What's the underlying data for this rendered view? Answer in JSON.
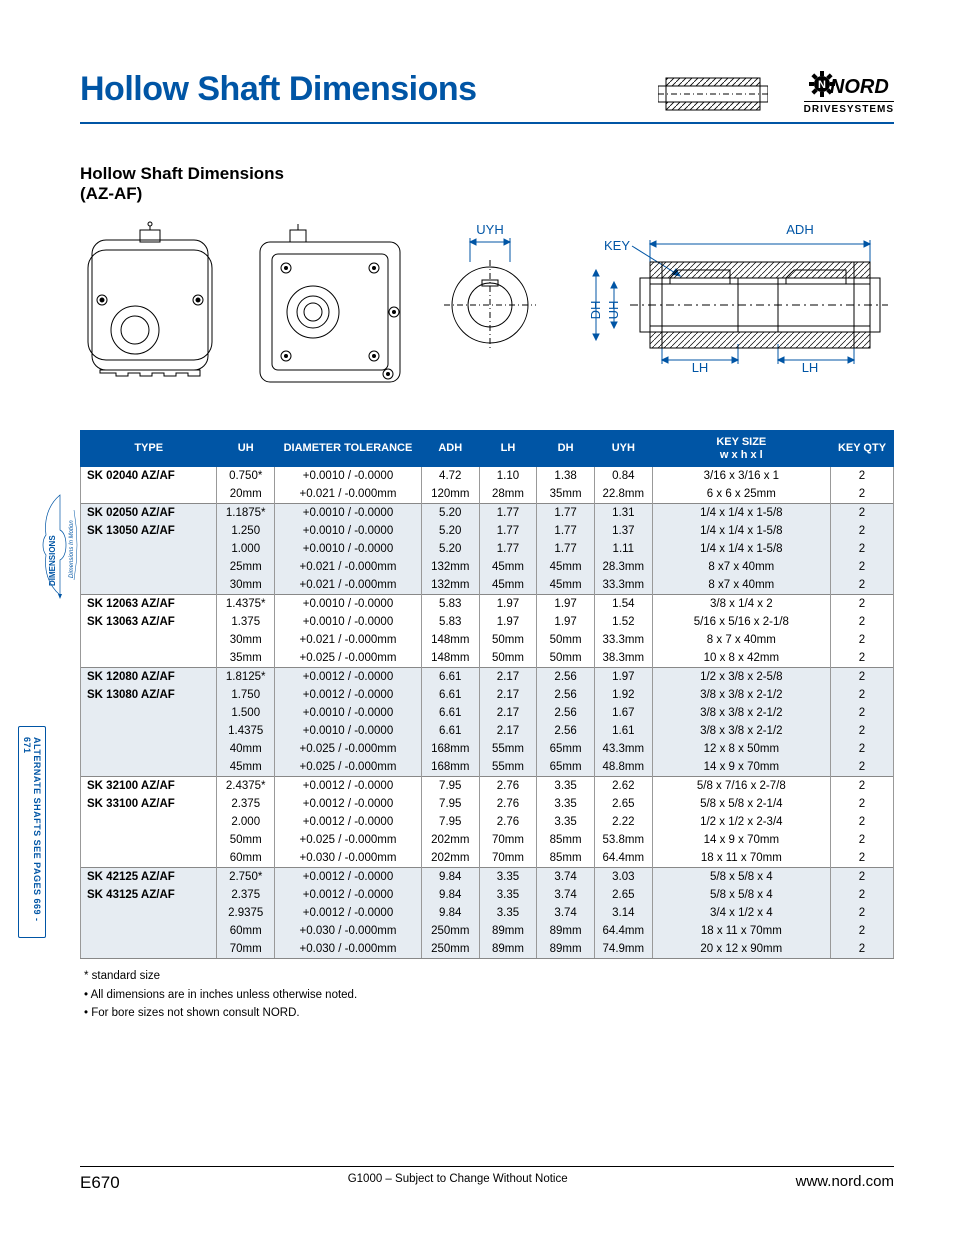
{
  "colors": {
    "brand": "#0055a5",
    "shade": "#e6ecf2",
    "text": "#000000",
    "border": "#888888"
  },
  "header": {
    "title": "Hollow Shaft Dimensions",
    "logo_word": "NORD",
    "logo_sub": "DRIVESYSTEMS"
  },
  "subtitle": {
    "line1": "Hollow Shaft Dimensions",
    "line2": "(AZ-AF)"
  },
  "diagram_labels": {
    "uyh": "UYH",
    "key": "KEY",
    "adh": "ADH",
    "dh": "DH",
    "uh": "UH",
    "lh": "LH"
  },
  "side_tabs": {
    "t1": "DIMENSIONS",
    "t1_sub": "Dimensions In Motion",
    "t2": "ALTERNATE SHAFTS SEE PAGES  669 - 671"
  },
  "table": {
    "columns": [
      "TYPE",
      "UH",
      "DIAMETER TOLERANCE",
      "ADH",
      "LH",
      "DH",
      "UYH",
      "KEY SIZE\nw x h x l",
      "KEY QTY"
    ],
    "groups": [
      {
        "shade": false,
        "rows": [
          {
            "type": "SK 02040 AZ/AF",
            "uh": "0.750*",
            "tol": "+0.0010 / -0.0000",
            "adh": "4.72",
            "lh": "1.10",
            "dh": "1.38",
            "uyh": "0.84",
            "key": "3/16 x 3/16 x 1",
            "qty": "2"
          },
          {
            "type": "",
            "uh": "20mm",
            "tol": "+0.021 / -0.000mm",
            "adh": "120mm",
            "lh": "28mm",
            "dh": "35mm",
            "uyh": "22.8mm",
            "key": "6 x 6 x 25mm",
            "qty": "2"
          }
        ]
      },
      {
        "shade": true,
        "rows": [
          {
            "type": "SK 02050 AZ/AF",
            "uh": "1.1875*",
            "tol": "+0.0010 / -0.0000",
            "adh": "5.20",
            "lh": "1.77",
            "dh": "1.77",
            "uyh": "1.31",
            "key": "1/4 x 1/4 x 1-5/8",
            "qty": "2"
          },
          {
            "type": "SK 13050 AZ/AF",
            "uh": "1.250",
            "tol": "+0.0010 / -0.0000",
            "adh": "5.20",
            "lh": "1.77",
            "dh": "1.77",
            "uyh": "1.37",
            "key": "1/4 x 1/4 x 1-5/8",
            "qty": "2"
          },
          {
            "type": "",
            "uh": "1.000",
            "tol": "+0.0010 / -0.0000",
            "adh": "5.20",
            "lh": "1.77",
            "dh": "1.77",
            "uyh": "1.11",
            "key": "1/4 x 1/4 x 1-5/8",
            "qty": "2"
          },
          {
            "type": "",
            "uh": "25mm",
            "tol": "+0.021 / -0.000mm",
            "adh": "132mm",
            "lh": "45mm",
            "dh": "45mm",
            "uyh": "28.3mm",
            "key": "8 x7 x 40mm",
            "qty": "2"
          },
          {
            "type": "",
            "uh": "30mm",
            "tol": "+0.021 / -0.000mm",
            "adh": "132mm",
            "lh": "45mm",
            "dh": "45mm",
            "uyh": "33.3mm",
            "key": "8 x7 x 40mm",
            "qty": "2"
          }
        ]
      },
      {
        "shade": false,
        "rows": [
          {
            "type": "SK 12063 AZ/AF",
            "uh": "1.4375*",
            "tol": "+0.0010 / -0.0000",
            "adh": "5.83",
            "lh": "1.97",
            "dh": "1.97",
            "uyh": "1.54",
            "key": "3/8 x 1/4 x 2",
            "qty": "2"
          },
          {
            "type": "SK 13063 AZ/AF",
            "uh": "1.375",
            "tol": "+0.0010 / -0.0000",
            "adh": "5.83",
            "lh": "1.97",
            "dh": "1.97",
            "uyh": "1.52",
            "key": "5/16 x 5/16 x 2-1/8",
            "qty": "2"
          },
          {
            "type": "",
            "uh": "30mm",
            "tol": "+0.021 / -0.000mm",
            "adh": "148mm",
            "lh": "50mm",
            "dh": "50mm",
            "uyh": "33.3mm",
            "key": "8 x 7 x 40mm",
            "qty": "2"
          },
          {
            "type": "",
            "uh": "35mm",
            "tol": "+0.025 / -0.000mm",
            "adh": "148mm",
            "lh": "50mm",
            "dh": "50mm",
            "uyh": "38.3mm",
            "key": "10 x 8 x 42mm",
            "qty": "2"
          }
        ]
      },
      {
        "shade": true,
        "rows": [
          {
            "type": "SK 12080 AZ/AF",
            "uh": "1.8125*",
            "tol": "+0.0012 / -0.0000",
            "adh": "6.61",
            "lh": "2.17",
            "dh": "2.56",
            "uyh": "1.97",
            "key": "1/2 x 3/8 x 2-5/8",
            "qty": "2"
          },
          {
            "type": "SK 13080 AZ/AF",
            "uh": "1.750",
            "tol": "+0.0012 / -0.0000",
            "adh": "6.61",
            "lh": "2.17",
            "dh": "2.56",
            "uyh": "1.92",
            "key": "3/8 x 3/8 x 2-1/2",
            "qty": "2"
          },
          {
            "type": "",
            "uh": "1.500",
            "tol": "+0.0010 / -0.0000",
            "adh": "6.61",
            "lh": "2.17",
            "dh": "2.56",
            "uyh": "1.67",
            "key": "3/8 x 3/8 x 2-1/2",
            "qty": "2"
          },
          {
            "type": "",
            "uh": "1.4375",
            "tol": "+0.0010 / -0.0000",
            "adh": "6.61",
            "lh": "2.17",
            "dh": "2.56",
            "uyh": "1.61",
            "key": "3/8 x 3/8 x 2-1/2",
            "qty": "2"
          },
          {
            "type": "",
            "uh": "40mm",
            "tol": "+0.025 / -0.000mm",
            "adh": "168mm",
            "lh": "55mm",
            "dh": "65mm",
            "uyh": "43.3mm",
            "key": "12 x 8 x 50mm",
            "qty": "2"
          },
          {
            "type": "",
            "uh": "45mm",
            "tol": "+0.025 / -0.000mm",
            "adh": "168mm",
            "lh": "55mm",
            "dh": "65mm",
            "uyh": "48.8mm",
            "key": "14 x 9 x 70mm",
            "qty": "2"
          }
        ]
      },
      {
        "shade": false,
        "rows": [
          {
            "type": "SK 32100 AZ/AF",
            "uh": "2.4375*",
            "tol": "+0.0012 / -0.0000",
            "adh": "7.95",
            "lh": "2.76",
            "dh": "3.35",
            "uyh": "2.62",
            "key": "5/8 x 7/16 x 2-7/8",
            "qty": "2"
          },
          {
            "type": "SK 33100 AZ/AF",
            "uh": "2.375",
            "tol": "+0.0012 / -0.0000",
            "adh": "7.95",
            "lh": "2.76",
            "dh": "3.35",
            "uyh": "2.65",
            "key": "5/8 x 5/8 x 2-1/4",
            "qty": "2"
          },
          {
            "type": "",
            "uh": "2.000",
            "tol": "+0.0012 / -0.0000",
            "adh": "7.95",
            "lh": "2.76",
            "dh": "3.35",
            "uyh": "2.22",
            "key": "1/2 x 1/2 x 2-3/4",
            "qty": "2"
          },
          {
            "type": "",
            "uh": "50mm",
            "tol": "+0.025 / -0.000mm",
            "adh": "202mm",
            "lh": "70mm",
            "dh": "85mm",
            "uyh": "53.8mm",
            "key": "14 x 9 x 70mm",
            "qty": "2"
          },
          {
            "type": "",
            "uh": "60mm",
            "tol": "+0.030 / -0.000mm",
            "adh": "202mm",
            "lh": "70mm",
            "dh": "85mm",
            "uyh": "64.4mm",
            "key": "18 x 11 x 70mm",
            "qty": "2"
          }
        ]
      },
      {
        "shade": true,
        "rows": [
          {
            "type": "SK 42125 AZ/AF",
            "uh": "2.750*",
            "tol": "+0.0012 / -0.0000",
            "adh": "9.84",
            "lh": "3.35",
            "dh": "3.74",
            "uyh": "3.03",
            "key": "5/8 x 5/8 x 4",
            "qty": "2"
          },
          {
            "type": "SK 43125 AZ/AF",
            "uh": "2.375",
            "tol": "+0.0012 / -0.0000",
            "adh": "9.84",
            "lh": "3.35",
            "dh": "3.74",
            "uyh": "2.65",
            "key": "5/8 x 5/8 x 4",
            "qty": "2"
          },
          {
            "type": "",
            "uh": "2.9375",
            "tol": "+0.0012 / -0.0000",
            "adh": "9.84",
            "lh": "3.35",
            "dh": "3.74",
            "uyh": "3.14",
            "key": "3/4 x 1/2 x 4",
            "qty": "2"
          },
          {
            "type": "",
            "uh": "60mm",
            "tol": "+0.030 / -0.000mm",
            "adh": "250mm",
            "lh": "89mm",
            "dh": "89mm",
            "uyh": "64.4mm",
            "key": "18 x 11 x 70mm",
            "qty": "2"
          },
          {
            "type": "",
            "uh": "70mm",
            "tol": "+0.030 / -0.000mm",
            "adh": "250mm",
            "lh": "89mm",
            "dh": "89mm",
            "uyh": "74.9mm",
            "key": "20 x 12 x 90mm",
            "qty": "2"
          }
        ]
      }
    ],
    "col_widths": [
      "130",
      "55",
      "140",
      "55",
      "55",
      "55",
      "55",
      "170",
      "60"
    ]
  },
  "notes": [
    "* standard size",
    "• All dimensions are in inches unless otherwise noted.",
    "• For bore sizes not shown consult NORD."
  ],
  "footer": {
    "page": "E670",
    "mid": "G1000 – Subject to Change Without Notice",
    "url": "www.nord.com"
  }
}
